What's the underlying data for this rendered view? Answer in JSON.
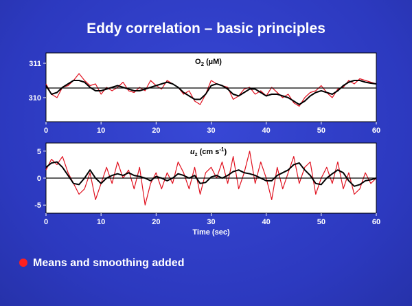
{
  "title": "Eddy correlation – basic principles",
  "bullet_text": "Means and smoothing added",
  "colors": {
    "background": "#2f3dc2",
    "raw": "#e0101e",
    "smooth": "#000000",
    "panel": "#ffffff"
  },
  "chart_data": [
    {
      "type": "line",
      "label_base": "O",
      "label_sub": "2",
      "label_unit": "(µM)",
      "xlabel": "",
      "xlim": [
        0,
        60
      ],
      "ylim": [
        309.3,
        311.3
      ],
      "yticks": [
        310,
        311
      ],
      "xticks": [
        0,
        10,
        20,
        30,
        40,
        50,
        60
      ],
      "mean": 310.28,
      "series": [
        {
          "style": "raw-red",
          "x": [
            0,
            1,
            2,
            3,
            4,
            5,
            6,
            7,
            8,
            9,
            10,
            11,
            12,
            13,
            14,
            15,
            16,
            17,
            18,
            19,
            20,
            21,
            22,
            23,
            24,
            25,
            26,
            27,
            28,
            29,
            30,
            31,
            32,
            33,
            34,
            35,
            36,
            37,
            38,
            39,
            40,
            41,
            42,
            43,
            44,
            45,
            46,
            47,
            48,
            49,
            50,
            51,
            52,
            53,
            54,
            55,
            56,
            57,
            58,
            59,
            60
          ],
          "y": [
            310.4,
            310.1,
            310.0,
            310.3,
            310.35,
            310.5,
            310.7,
            310.5,
            310.35,
            310.4,
            310.1,
            310.3,
            310.2,
            310.3,
            310.45,
            310.2,
            310.15,
            310.3,
            310.2,
            310.5,
            310.35,
            310.25,
            310.5,
            310.4,
            310.3,
            310.1,
            310.2,
            309.9,
            309.8,
            310.1,
            310.5,
            310.4,
            310.35,
            310.3,
            309.95,
            310.05,
            310.25,
            310.3,
            310.1,
            310.2,
            310.05,
            310.3,
            310.15,
            310.0,
            310.1,
            309.85,
            309.75,
            310.0,
            310.15,
            310.2,
            310.35,
            310.15,
            310.0,
            310.25,
            310.3,
            310.5,
            310.4,
            310.55,
            310.5,
            310.45,
            310.4
          ]
        },
        {
          "style": "smooth-black",
          "x": [
            0,
            1,
            2,
            3,
            4,
            5,
            6,
            7,
            8,
            9,
            10,
            11,
            12,
            13,
            14,
            15,
            16,
            17,
            18,
            19,
            20,
            21,
            22,
            23,
            24,
            25,
            26,
            27,
            28,
            29,
            30,
            31,
            32,
            33,
            34,
            35,
            36,
            37,
            38,
            39,
            40,
            41,
            42,
            43,
            44,
            45,
            46,
            47,
            48,
            49,
            50,
            51,
            52,
            53,
            54,
            55,
            56,
            57,
            58,
            59,
            60
          ],
          "y": [
            310.35,
            310.1,
            310.15,
            310.3,
            310.4,
            310.5,
            310.5,
            310.45,
            310.3,
            310.2,
            310.2,
            310.25,
            310.3,
            310.35,
            310.3,
            310.25,
            310.2,
            310.2,
            310.25,
            310.3,
            310.35,
            310.4,
            310.45,
            310.4,
            310.3,
            310.15,
            310.05,
            309.95,
            309.95,
            310.1,
            310.35,
            310.4,
            310.35,
            310.25,
            310.1,
            310.05,
            310.15,
            310.25,
            310.25,
            310.15,
            310.05,
            310.1,
            310.1,
            310.05,
            310.0,
            309.9,
            309.8,
            309.9,
            310.05,
            310.15,
            310.2,
            310.15,
            310.1,
            310.2,
            310.35,
            310.45,
            310.5,
            310.5,
            310.45,
            310.42,
            310.4
          ]
        }
      ]
    },
    {
      "type": "line",
      "label_base": "u",
      "label_sub": "z",
      "label_unit": "(cm s",
      "label_sup": "-1",
      "label_close": ")",
      "xlabel": "Time  (sec)",
      "xlim": [
        0,
        60
      ],
      "ylim": [
        -6.5,
        6.5
      ],
      "yticks": [
        -5,
        0,
        5
      ],
      "xticks": [
        0,
        10,
        20,
        30,
        40,
        50,
        60
      ],
      "mean": 0,
      "series": [
        {
          "style": "raw-red",
          "x": [
            0,
            1,
            2,
            3,
            4,
            5,
            6,
            7,
            8,
            9,
            10,
            11,
            12,
            13,
            14,
            15,
            16,
            17,
            18,
            19,
            20,
            21,
            22,
            23,
            24,
            25,
            26,
            27,
            28,
            29,
            30,
            31,
            32,
            33,
            34,
            35,
            36,
            37,
            38,
            39,
            40,
            41,
            42,
            43,
            44,
            45,
            46,
            47,
            48,
            49,
            50,
            51,
            52,
            53,
            54,
            55,
            56,
            57,
            58,
            59,
            60
          ],
          "y": [
            1.5,
            3.5,
            2.5,
            4,
            1,
            -1,
            -3,
            -2,
            1,
            -4,
            -1,
            2,
            -1,
            3,
            0,
            1.5,
            -2,
            2,
            -5,
            -1,
            1,
            -2,
            1,
            -1,
            3,
            1,
            -2,
            2,
            -3,
            1,
            2,
            0,
            3,
            -1,
            4,
            -2,
            1,
            5,
            -1,
            3,
            0,
            -4,
            2,
            -2,
            1,
            4,
            -1,
            2,
            3,
            -3,
            0,
            2,
            -1,
            3,
            -2,
            1,
            -3,
            -2,
            1,
            -1,
            0
          ]
        },
        {
          "style": "smooth-black",
          "x": [
            0,
            1,
            2,
            3,
            4,
            5,
            6,
            7,
            8,
            9,
            10,
            11,
            12,
            13,
            14,
            15,
            16,
            17,
            18,
            19,
            20,
            21,
            22,
            23,
            24,
            25,
            26,
            27,
            28,
            29,
            30,
            31,
            32,
            33,
            34,
            35,
            36,
            37,
            38,
            39,
            40,
            41,
            42,
            43,
            44,
            45,
            46,
            47,
            48,
            49,
            50,
            51,
            52,
            53,
            54,
            55,
            56,
            57,
            58,
            59,
            60
          ],
          "y": [
            2,
            2.8,
            3,
            2,
            0.5,
            -1,
            -1.2,
            0,
            1.5,
            0,
            -1,
            0,
            0.5,
            0.8,
            0.5,
            1,
            0.5,
            0.3,
            0,
            -0.5,
            0.3,
            0,
            -0.5,
            0,
            0.8,
            0.5,
            0,
            0.5,
            -1,
            -0.8,
            0.2,
            0.5,
            0,
            0.5,
            1.2,
            1.5,
            1,
            0.8,
            0.5,
            0,
            -0.5,
            -0.5,
            0.5,
            1,
            1.5,
            2.5,
            2.8,
            1.5,
            0.5,
            -1,
            -1.2,
            0,
            0.8,
            1.5,
            1,
            -0.5,
            -1.5,
            -1.2,
            -0.5,
            -0.3,
            0
          ]
        }
      ]
    }
  ]
}
